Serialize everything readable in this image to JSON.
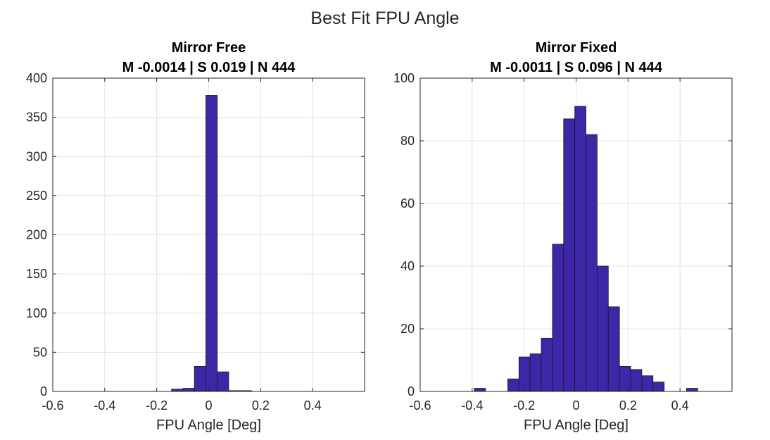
{
  "figure": {
    "title": "Best Fit FPU Angle"
  },
  "colors": {
    "bar_fill": "#3e26a8",
    "bar_edge": "#1a1a1a",
    "grid": "#e3e3e3",
    "axis": "#262626"
  },
  "chart_data": [
    {
      "type": "bar",
      "title_line1": "Mirror Free",
      "title_line2": "M -0.0014 | S 0.019 | N 444",
      "xlabel": "FPU Angle [Deg]",
      "ylabel": "",
      "xlim": [
        -0.6,
        0.6
      ],
      "ylim": [
        0,
        400
      ],
      "xticks": [
        -0.6,
        -0.4,
        -0.2,
        0,
        0.2,
        0.4
      ],
      "xtick_labels": [
        "-0.6",
        "-0.4",
        "-0.2",
        "0",
        "0.2",
        "0.4"
      ],
      "yticks": [
        0,
        50,
        100,
        150,
        200,
        250,
        300,
        350,
        400
      ],
      "ytick_labels": [
        "0",
        "50",
        "100",
        "150",
        "200",
        "250",
        "300",
        "350",
        "400"
      ],
      "grid": true,
      "bin_edges": [
        -0.143,
        -0.099,
        -0.055,
        -0.011,
        0.033,
        0.077,
        0.121,
        0.165
      ],
      "values": [
        3,
        4,
        32,
        378,
        25,
        1,
        1
      ]
    },
    {
      "type": "bar",
      "title_line1": "Mirror Fixed",
      "title_line2": "M -0.0011 | S 0.096 | N 444",
      "xlabel": "FPU Angle [Deg]",
      "ylabel": "",
      "xlim": [
        -0.6,
        0.6
      ],
      "ylim": [
        0,
        100
      ],
      "xticks": [
        -0.6,
        -0.4,
        -0.2,
        0,
        0.2,
        0.4
      ],
      "xtick_labels": [
        "-0.6",
        "-0.4",
        "-0.2",
        "0",
        "0.2",
        "0.4"
      ],
      "yticks": [
        0,
        20,
        40,
        60,
        80,
        100
      ],
      "ytick_labels": [
        "0",
        "20",
        "40",
        "60",
        "80",
        "100"
      ],
      "grid": true,
      "bin_edges": [
        -0.392,
        -0.349,
        -0.306,
        -0.263,
        -0.22,
        -0.177,
        -0.134,
        -0.091,
        -0.048,
        -0.005,
        0.038,
        0.081,
        0.124,
        0.167,
        0.21,
        0.253,
        0.296,
        0.339,
        0.382,
        0.425,
        0.468
      ],
      "values": [
        1,
        0,
        0,
        4,
        11,
        12,
        17,
        47,
        87,
        91,
        82,
        40,
        27,
        8,
        7,
        5,
        3,
        0,
        0,
        1
      ]
    }
  ]
}
